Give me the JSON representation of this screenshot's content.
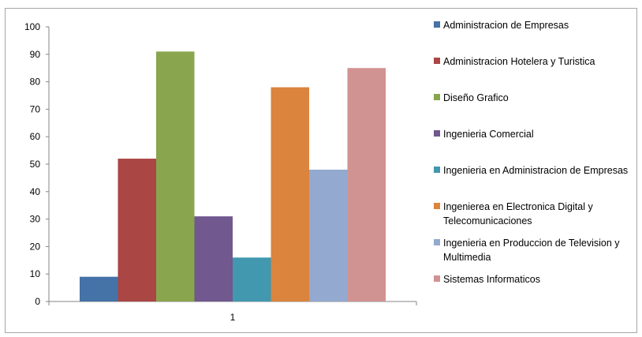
{
  "chart_data": {
    "type": "bar",
    "categories": [
      "1"
    ],
    "ylim": [
      0,
      100
    ],
    "yticks": [
      0,
      10,
      20,
      30,
      40,
      50,
      60,
      70,
      80,
      90,
      100
    ],
    "grid": false,
    "legend_position": "right",
    "series": [
      {
        "name": "Administracion de Empresas",
        "values": [
          9
        ],
        "color": "#4572a7"
      },
      {
        "name": "Administracion Hotelera y Turistica",
        "values": [
          52
        ],
        "color": "#aa4643"
      },
      {
        "name": "Diseño Grafico",
        "values": [
          91
        ],
        "color": "#89a54e"
      },
      {
        "name": "Ingenieria Comercial",
        "values": [
          31
        ],
        "color": "#71588f"
      },
      {
        "name": "Ingenieria en Administracion de Empresas",
        "values": [
          16
        ],
        "color": "#4198af"
      },
      {
        "name": "Ingenierea en Electronica Digital y Telecomunicaciones",
        "values": [
          78
        ],
        "color": "#db843d"
      },
      {
        "name": "Ingenieria en Produccion de Television y Multimedia",
        "values": [
          48
        ],
        "color": "#93a9cf"
      },
      {
        "name": "Sistemas Informaticos",
        "values": [
          85
        ],
        "color": "#d19392"
      }
    ]
  }
}
